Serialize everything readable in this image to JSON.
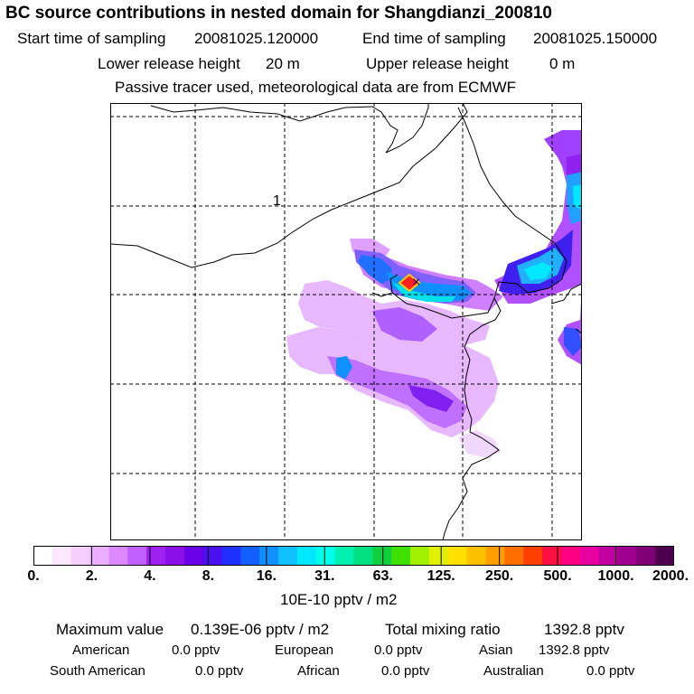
{
  "title": "BC  source contributions in nested domain for Shangdianzi_200810",
  "header": {
    "start_label": "Start time of sampling",
    "start_value": "20081025.120000",
    "end_label": "End time of sampling",
    "end_value": "20081025.150000",
    "lower_label": "Lower release height",
    "lower_value": "20 m",
    "upper_label": "Upper release height",
    "upper_value": "0 m",
    "note": "Passive tracer used, meteorological data are from ECMWF"
  },
  "map": {
    "grid_label": "1",
    "receptor_marker": "x-marker-icon"
  },
  "colorbar": {
    "ticks": [
      "0.",
      "2.",
      "4.",
      "8.",
      "16.",
      "31.",
      "63.",
      "125.",
      "250.",
      "500.",
      "1000.",
      "2000."
    ],
    "unit": "10E-10 pptv / m2",
    "colors": [
      "#ffffff",
      "#fbe8ff",
      "#f5d0ff",
      "#eab0ff",
      "#dd88ff",
      "#c060ff",
      "#a020f0",
      "#8a10e8",
      "#6a00e8",
      "#4a10f0",
      "#2030ff",
      "#1060ff",
      "#1090ff",
      "#10c0ff",
      "#00e8ff",
      "#00ffe8",
      "#00f0b0",
      "#00e080",
      "#10d040",
      "#40e000",
      "#a0f000",
      "#e0f000",
      "#ffe000",
      "#ffc000",
      "#ffa000",
      "#ff7000",
      "#ff4000",
      "#ff1040",
      "#ff0080",
      "#e800a0",
      "#c000a0",
      "#a00090",
      "#800078",
      "#500050"
    ]
  },
  "footer": {
    "max_label": "Maximum value",
    "max_value": "0.139E-06 pptv / m2",
    "total_label": "Total mixing ratio",
    "total_value": "1392.8 pptv",
    "american_label": "American",
    "american_value": "0.0 pptv",
    "european_label": "European",
    "european_value": "0.0 pptv",
    "asian_label": "Asian",
    "asian_value": "1392.8 pptv",
    "samerican_label": "South American",
    "samerican_value": "0.0 pptv",
    "african_label": "African",
    "african_value": "0.0 pptv",
    "australian_label": "Australian",
    "australian_value": "0.0 pptv"
  }
}
